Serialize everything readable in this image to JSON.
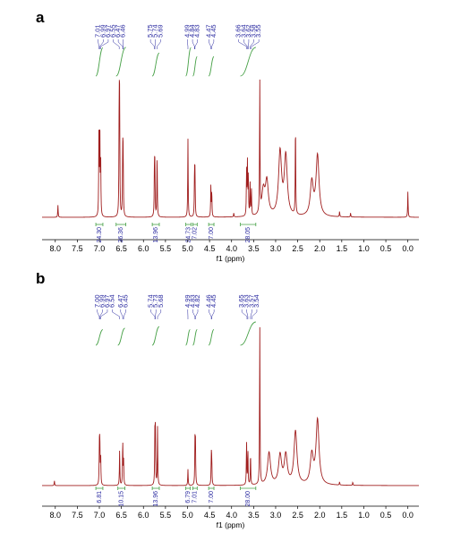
{
  "figure": {
    "panels": [
      "a",
      "b"
    ]
  },
  "colors": {
    "spectrum": "#a01e1e",
    "peak_label": "#2a2aa0",
    "integral_curve": "#46a046",
    "integral_label": "#2a2aa0",
    "axis": "#000000"
  },
  "chart_data": [
    {
      "type": "line",
      "panel": "a",
      "xlabel": "f1 (ppm)",
      "xlim": [
        8.3,
        -0.25
      ],
      "x_reversed": true,
      "x_ticks": [
        "8.0",
        "7.5",
        "7.0",
        "6.5",
        "6.0",
        "5.5",
        "5.0",
        "4.5",
        "4.0",
        "3.5",
        "3.0",
        "2.5",
        "2.0",
        "1.5",
        "1.0",
        "0.5",
        "0.0"
      ],
      "peak_labels": [
        {
          "group": "aromatic",
          "labels": [
            "7.01",
            "6.99",
            "6.97",
            "6.55",
            "6.47",
            "6.46"
          ],
          "positions": [
            7.01,
            6.99,
            6.97,
            6.55,
            6.47,
            6.46
          ]
        },
        {
          "group": "vinyl",
          "labels": [
            "5.75",
            "5.74",
            "5.69"
          ],
          "positions": [
            5.75,
            5.74,
            5.69
          ]
        },
        {
          "group": "vinyl2",
          "labels": [
            "4.99",
            "4.84",
            "4.83"
          ],
          "positions": [
            4.99,
            4.84,
            4.83
          ]
        },
        {
          "group": "ch",
          "labels": [
            "4.47",
            "4.45"
          ],
          "positions": [
            4.47,
            4.45
          ]
        },
        {
          "group": "ether",
          "labels": [
            "3.66",
            "3.64",
            "3.62",
            "3.58",
            "3.55"
          ],
          "positions": [
            3.66,
            3.64,
            3.62,
            3.58,
            3.55
          ]
        }
      ],
      "integrals": [
        {
          "value": "24.30",
          "from": 7.08,
          "to": 6.92
        },
        {
          "value": "36.36",
          "from": 6.62,
          "to": 6.4
        },
        {
          "value": "13.96",
          "from": 5.8,
          "to": 5.64
        },
        {
          "value": "24.73",
          "from": 5.04,
          "to": 4.92
        },
        {
          "value": "7.02",
          "from": 4.88,
          "to": 4.78
        },
        {
          "value": "7.00",
          "from": 4.52,
          "to": 4.4
        },
        {
          "value": "28.05",
          "from": 3.8,
          "to": 3.45
        }
      ],
      "peaks": [
        {
          "ppm": 7.94,
          "height": 0.09
        },
        {
          "ppm": 7.01,
          "height": 0.62
        },
        {
          "ppm": 6.99,
          "height": 0.7
        },
        {
          "ppm": 6.97,
          "height": 0.4
        },
        {
          "ppm": 6.55,
          "height": 0.86
        },
        {
          "ppm": 6.54,
          "height": 0.74
        },
        {
          "ppm": 6.47,
          "height": 0.48
        },
        {
          "ppm": 6.46,
          "height": 0.42
        },
        {
          "ppm": 5.75,
          "height": 0.38
        },
        {
          "ppm": 5.74,
          "height": 0.33
        },
        {
          "ppm": 5.69,
          "height": 0.47
        },
        {
          "ppm": 4.99,
          "height": 0.58
        },
        {
          "ppm": 4.84,
          "height": 0.33
        },
        {
          "ppm": 4.83,
          "height": 0.29
        },
        {
          "ppm": 4.47,
          "height": 0.23
        },
        {
          "ppm": 4.45,
          "height": 0.19
        },
        {
          "ppm": 3.95,
          "height": 0.03
        },
        {
          "ppm": 3.66,
          "height": 0.34
        },
        {
          "ppm": 3.64,
          "height": 0.38
        },
        {
          "ppm": 3.62,
          "height": 0.3
        },
        {
          "ppm": 3.58,
          "height": 0.24
        },
        {
          "ppm": 3.55,
          "height": 0.2
        },
        {
          "ppm": 3.36,
          "height": 0.98
        },
        {
          "ppm": 3.28,
          "height": 0.18
        },
        {
          "ppm": 3.2,
          "height": 0.25
        },
        {
          "ppm": 2.9,
          "height": 0.47
        },
        {
          "ppm": 2.77,
          "height": 0.44
        },
        {
          "ppm": 2.55,
          "height": 0.7
        },
        {
          "ppm": 2.18,
          "height": 0.25
        },
        {
          "ppm": 2.05,
          "height": 0.45
        },
        {
          "ppm": 1.55,
          "height": 0.04
        },
        {
          "ppm": 1.3,
          "height": 0.03
        },
        {
          "ppm": 0.0,
          "height": 0.19
        }
      ]
    },
    {
      "type": "line",
      "panel": "b",
      "xlabel": "f1 (ppm)",
      "xlim": [
        8.3,
        -0.25
      ],
      "x_reversed": true,
      "x_ticks": [
        "8.0",
        "7.5",
        "7.0",
        "6.5",
        "6.0",
        "5.5",
        "5.0",
        "4.5",
        "4.0",
        "3.5",
        "3.0",
        "2.5",
        "2.0",
        "1.5",
        "1.0",
        "0.5",
        "0.0"
      ],
      "peak_labels": [
        {
          "group": "aromatic",
          "labels": [
            "7.00",
            "6.99",
            "6.97",
            "6.54"
          ],
          "positions": [
            7.0,
            6.99,
            6.97,
            6.54
          ]
        },
        {
          "group": "aromatic2",
          "labels": [
            "6.47",
            "6.45"
          ],
          "positions": [
            6.47,
            6.45
          ]
        },
        {
          "group": "vinyl",
          "labels": [
            "5.74",
            "5.73",
            "5.68"
          ],
          "positions": [
            5.74,
            5.73,
            5.68
          ]
        },
        {
          "group": "vinyl2",
          "labels": [
            "4.99",
            "4.83",
            "4.82"
          ],
          "positions": [
            4.99,
            4.83,
            4.82
          ]
        },
        {
          "group": "ch",
          "labels": [
            "4.46",
            "4.45"
          ],
          "positions": [
            4.46,
            4.45
          ]
        },
        {
          "group": "ether",
          "labels": [
            "3.65",
            "3.63",
            "3.57",
            "3.54"
          ],
          "positions": [
            3.65,
            3.63,
            3.57,
            3.54
          ]
        }
      ],
      "integrals": [
        {
          "value": "6.81",
          "from": 7.08,
          "to": 6.92
        },
        {
          "value": "10.15",
          "from": 6.58,
          "to": 6.42
        },
        {
          "value": "13.96",
          "from": 5.8,
          "to": 5.64
        },
        {
          "value": "6.79",
          "from": 5.04,
          "to": 4.94
        },
        {
          "value": "7.01",
          "from": 4.88,
          "to": 4.78
        },
        {
          "value": "7.00",
          "from": 4.52,
          "to": 4.4
        },
        {
          "value": "28.00",
          "from": 3.8,
          "to": 3.45
        }
      ],
      "peaks": [
        {
          "ppm": 8.02,
          "height": 0.03
        },
        {
          "ppm": 7.0,
          "height": 0.22
        },
        {
          "ppm": 6.99,
          "height": 0.27
        },
        {
          "ppm": 6.97,
          "height": 0.17
        },
        {
          "ppm": 6.54,
          "height": 0.22
        },
        {
          "ppm": 6.47,
          "height": 0.28
        },
        {
          "ppm": 6.45,
          "height": 0.15
        },
        {
          "ppm": 5.74,
          "height": 0.3
        },
        {
          "ppm": 5.73,
          "height": 0.33
        },
        {
          "ppm": 5.68,
          "height": 0.36
        },
        {
          "ppm": 4.99,
          "height": 0.1
        },
        {
          "ppm": 4.83,
          "height": 0.27
        },
        {
          "ppm": 4.82,
          "height": 0.25
        },
        {
          "ppm": 4.46,
          "height": 0.18
        },
        {
          "ppm": 4.45,
          "height": 0.15
        },
        {
          "ppm": 3.66,
          "height": 0.27
        },
        {
          "ppm": 3.63,
          "height": 0.22
        },
        {
          "ppm": 3.57,
          "height": 0.2
        },
        {
          "ppm": 3.36,
          "height": 0.98
        },
        {
          "ppm": 3.15,
          "height": 0.2
        },
        {
          "ppm": 2.9,
          "height": 0.18
        },
        {
          "ppm": 2.77,
          "height": 0.18
        },
        {
          "ppm": 2.55,
          "height": 0.33
        },
        {
          "ppm": 2.18,
          "height": 0.18
        },
        {
          "ppm": 2.05,
          "height": 0.4
        },
        {
          "ppm": 1.55,
          "height": 0.02
        },
        {
          "ppm": 1.25,
          "height": 0.02
        }
      ]
    }
  ]
}
